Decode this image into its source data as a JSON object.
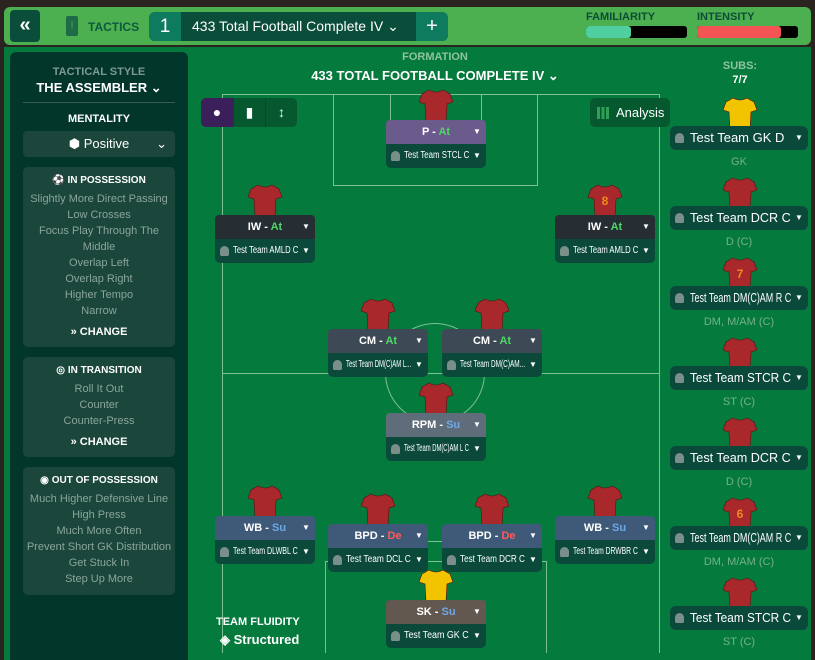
{
  "header": {
    "back_icon": "double-chevron-left",
    "tactics_label": "TACTICS",
    "tactic_number": "1",
    "tactic_name": "433 Total Football Complete IV",
    "add_label": "+",
    "familiarity": {
      "label": "FAMILIARITY",
      "value": 0.45,
      "color": "#4fcea0"
    },
    "intensity": {
      "label": "INTENSITY",
      "value": 0.83,
      "color": "#f55454"
    }
  },
  "sidebar": {
    "tactical_style_label": "TACTICAL STYLE",
    "tactical_style": "THE ASSEMBLER",
    "mentality_label": "MENTALITY",
    "mentality": "Positive",
    "in_possession": {
      "title": "IN POSSESSION",
      "items": [
        "Slightly More Direct Passing",
        "Low Crosses",
        "Focus Play Through The Middle",
        "Overlap Left",
        "Overlap Right",
        "Higher Tempo",
        "Narrow"
      ],
      "change": "CHANGE"
    },
    "in_transition": {
      "title": "IN TRANSITION",
      "items": [
        "Roll It Out",
        "Counter",
        "Counter-Press"
      ],
      "change": "CHANGE"
    },
    "out_of_possession": {
      "title": "OUT OF POSSESSION",
      "items": [
        "Much Higher Defensive Line",
        "High Press",
        "Much More Often",
        "Prevent Short GK Distribution",
        "Get Stuck In",
        "Step Up More"
      ]
    }
  },
  "formation": {
    "label": "FORMATION",
    "name": "433 TOTAL FOOTBALL COMPLETE IV",
    "analysis": "Analysis",
    "fluidity_label": "TEAM FLUIDITY",
    "fluidity": "Structured",
    "players": [
      {
        "role": "P",
        "duty": "At",
        "name": "Test Team STCL C",
        "kit": "outfield",
        "number": ""
      },
      {
        "role": "IW",
        "duty": "At",
        "name": "Test Team AMLD C",
        "kit": "outfield",
        "number": ""
      },
      {
        "role": "IW",
        "duty": "At",
        "name": "Test Team AMLD C",
        "kit": "outfield",
        "number": "8"
      },
      {
        "role": "CM",
        "duty": "At",
        "name": "Test Team DM(C)AM L...",
        "kit": "outfield",
        "number": ""
      },
      {
        "role": "CM",
        "duty": "At",
        "name": "Test Team DM(C)AM...",
        "kit": "outfield",
        "number": ""
      },
      {
        "role": "RPM",
        "duty": "Su",
        "name": "Test Team DM(C)AM L C",
        "kit": "outfield",
        "number": ""
      },
      {
        "role": "WB",
        "duty": "Su",
        "name": "Test Team DLWBL C",
        "kit": "outfield",
        "number": ""
      },
      {
        "role": "BPD",
        "duty": "De",
        "name": "Test Team DCL C",
        "kit": "outfield",
        "number": ""
      },
      {
        "role": "BPD",
        "duty": "De",
        "name": "Test Team DCR C",
        "kit": "outfield",
        "number": ""
      },
      {
        "role": "WB",
        "duty": "Su",
        "name": "Test Team DRWBR C",
        "kit": "outfield",
        "number": ""
      },
      {
        "role": "SK",
        "duty": "Su",
        "name": "Test Team GK C",
        "kit": "gk",
        "number": ""
      }
    ]
  },
  "subs": {
    "label": "SUBS:",
    "count": "7/7",
    "players": [
      {
        "name": "Test Team GK D",
        "pos": "GK",
        "kit": "gk",
        "number": ""
      },
      {
        "name": "Test Team DCR C",
        "pos": "D (C)",
        "kit": "outfield",
        "number": ""
      },
      {
        "name": "Test Team DM(C)AM R C",
        "pos": "DM, M/AM (C)",
        "kit": "outfield",
        "number": "7"
      },
      {
        "name": "Test Team STCR  C",
        "pos": "ST (C)",
        "kit": "outfield",
        "number": ""
      },
      {
        "name": "Test Team DCR C",
        "pos": "D (C)",
        "kit": "outfield",
        "number": ""
      },
      {
        "name": "Test Team DM(C)AM R C",
        "pos": "DM, M/AM (C)",
        "kit": "outfield",
        "number": "6"
      },
      {
        "name": "Test Team STCR  C",
        "pos": "ST (C)",
        "kit": "outfield",
        "number": ""
      }
    ]
  },
  "colors": {
    "attack": "#4cd964",
    "support": "#6ea8e8",
    "defend": "#ff5a5a",
    "kit": "#a8282c",
    "gk_kit": "#f2c400"
  }
}
